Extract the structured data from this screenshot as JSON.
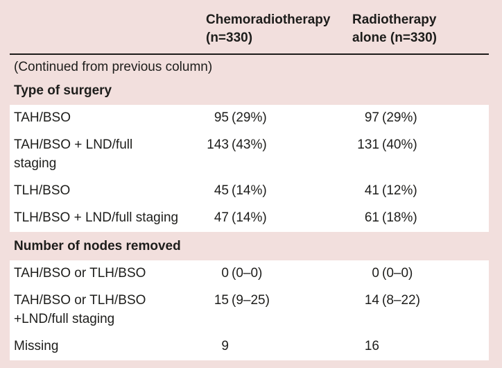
{
  "colors": {
    "page_background": "#f2dfdd",
    "row_background": "#ffffff",
    "rule": "#1d1a19",
    "text": "#1d1d1b"
  },
  "header": {
    "col1_line1": "Chemoradiotherapy",
    "col1_line2": "(n=330)",
    "col2_line1": "Radiotherapy",
    "col2_line2": "alone (n=330)"
  },
  "continued_note": "(Continued from previous column)",
  "section1": {
    "title": "Type of surgery",
    "rows": [
      {
        "label": "TAH/BSO",
        "label2": "",
        "c1n": "95",
        "c1p": "(29%)",
        "c2n": "97",
        "c2p": "(29%)"
      },
      {
        "label": "TAH/BSO + LND/full",
        "label2": "staging",
        "c1n": "143",
        "c1p": "(43%)",
        "c2n": "131",
        "c2p": "(40%)"
      },
      {
        "label": "TLH/BSO",
        "label2": "",
        "c1n": "45",
        "c1p": "(14%)",
        "c2n": "41",
        "c2p": "(12%)"
      },
      {
        "label": "TLH/BSO + LND/full staging",
        "label2": "",
        "c1n": "47",
        "c1p": "(14%)",
        "c2n": "61",
        "c2p": "(18%)"
      }
    ]
  },
  "section2": {
    "title": "Number of nodes removed",
    "rows": [
      {
        "label": "TAH/BSO or TLH/BSO",
        "label2": "",
        "c1n": "0",
        "c1p": "(0–0)",
        "c2n": "0",
        "c2p": "(0–0)"
      },
      {
        "label": "TAH/BSO or TLH/BSO",
        "label2": "+LND/full staging",
        "c1n": "15",
        "c1p": "(9–25)",
        "c2n": "14",
        "c2p": "(8–22)"
      },
      {
        "label": "Missing",
        "label2": "",
        "c1n": "9",
        "c1p": "",
        "c2n": "16",
        "c2p": ""
      }
    ]
  }
}
